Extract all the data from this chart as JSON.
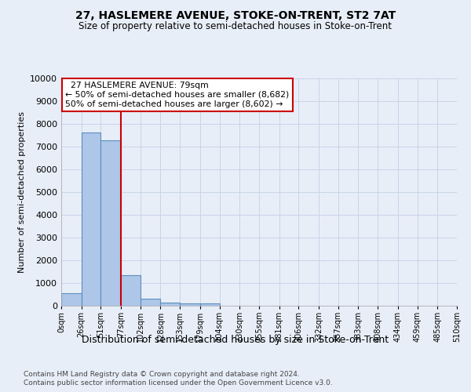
{
  "title": "27, HASLEMERE AVENUE, STOKE-ON-TRENT, ST2 7AT",
  "subtitle": "Size of property relative to semi-detached houses in Stoke-on-Trent",
  "xlabel": "Distribution of semi-detached houses by size in Stoke-on-Trent",
  "ylabel": "Number of semi-detached properties",
  "footnote1": "Contains HM Land Registry data © Crown copyright and database right 2024.",
  "footnote2": "Contains public sector information licensed under the Open Government Licence v3.0.",
  "bin_edges": [
    0,
    26,
    51,
    77,
    102,
    128,
    153,
    179,
    204,
    230,
    255,
    281,
    306,
    332,
    357,
    383,
    408,
    434,
    459,
    485,
    510
  ],
  "bin_labels": [
    "0sqm",
    "26sqm",
    "51sqm",
    "77sqm",
    "102sqm",
    "128sqm",
    "153sqm",
    "179sqm",
    "204sqm",
    "230sqm",
    "255sqm",
    "281sqm",
    "306sqm",
    "332sqm",
    "357sqm",
    "383sqm",
    "408sqm",
    "434sqm",
    "459sqm",
    "485sqm",
    "510sqm"
  ],
  "bar_heights": [
    560,
    7620,
    7270,
    1360,
    320,
    150,
    120,
    90,
    0,
    0,
    0,
    0,
    0,
    0,
    0,
    0,
    0,
    0,
    0,
    0
  ],
  "bar_color": "#aec6e8",
  "bar_edge_color": "#5b8fbe",
  "vline_x": 77,
  "annotation_title": "27 HASLEMERE AVENUE: 79sqm",
  "annotation_line1": "← 50% of semi-detached houses are smaller (8,682)",
  "annotation_line2": "50% of semi-detached houses are larger (8,602) →",
  "annotation_box_facecolor": "#ffffff",
  "annotation_box_edgecolor": "#cc0000",
  "vline_color": "#cc0000",
  "ylim": [
    0,
    10000
  ],
  "yticks": [
    0,
    1000,
    2000,
    3000,
    4000,
    5000,
    6000,
    7000,
    8000,
    9000,
    10000
  ],
  "grid_color": "#c8d4e8",
  "background_color": "#e8eef8",
  "title_fontsize": 10,
  "subtitle_fontsize": 8.5,
  "ylabel_fontsize": 8,
  "xlabel_fontsize": 9,
  "footnote_fontsize": 6.5
}
